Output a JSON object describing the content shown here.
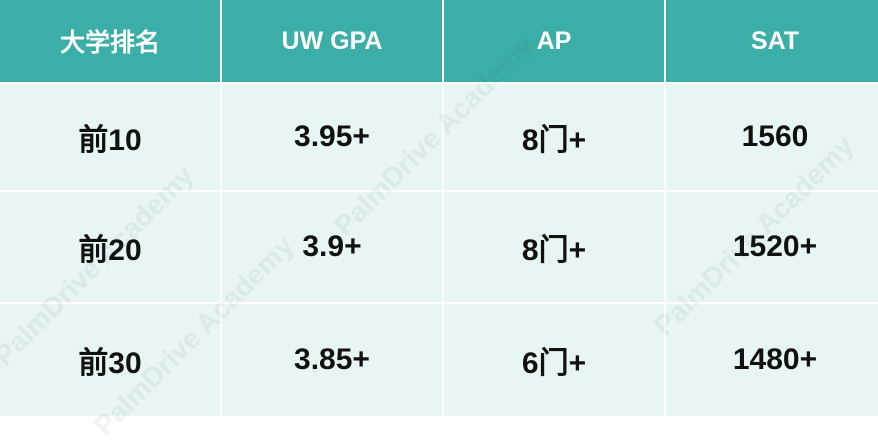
{
  "table": {
    "header": [
      "大学排名",
      "UW GPA",
      "AP",
      "SAT"
    ],
    "rows": [
      [
        "前10",
        "3.95+",
        "8门+",
        "1560"
      ],
      [
        "前20",
        "3.9+",
        "8门+",
        "1520+"
      ],
      [
        "前30",
        "3.85+",
        "6门+",
        "1480+"
      ]
    ]
  },
  "watermark": "PalmDrive Academy"
}
